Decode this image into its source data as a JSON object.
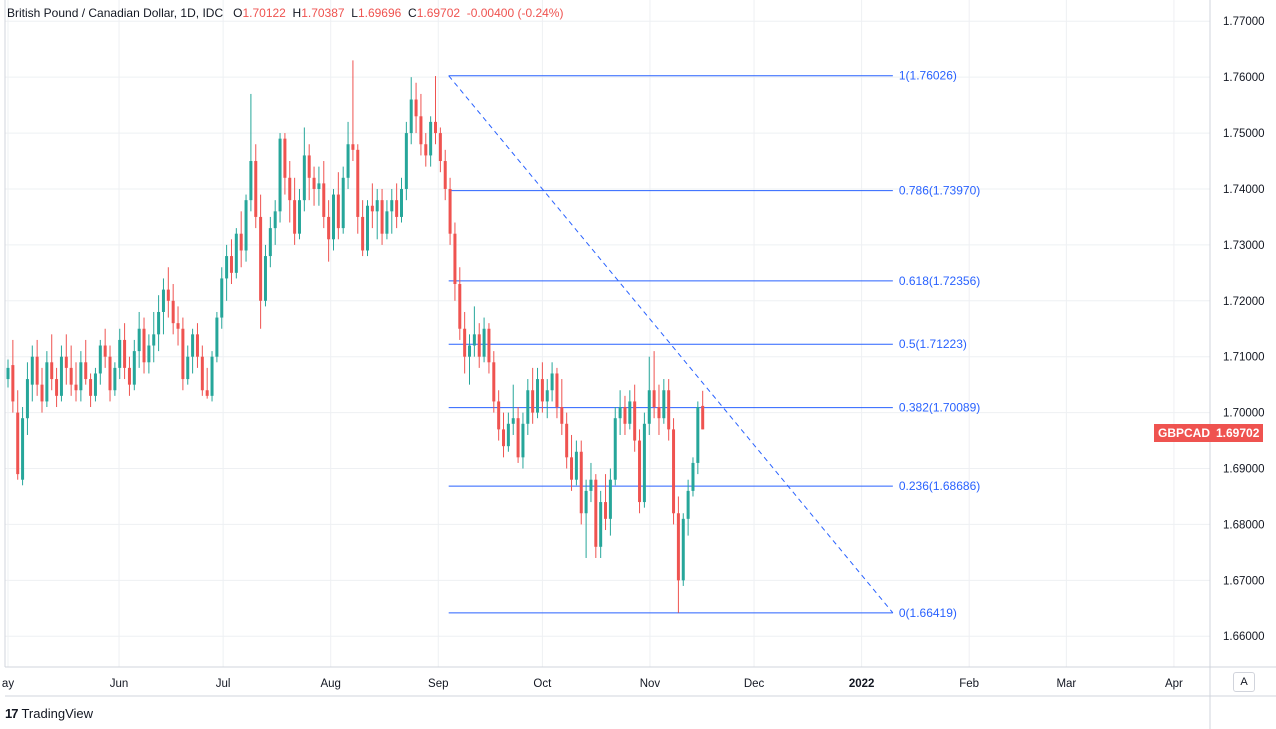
{
  "legend": {
    "symbol_desc": "British Pound / Canadian Dollar, 1D, IDC",
    "open_label": "O",
    "open": "1.70122",
    "high_label": "H",
    "high": "1.70387",
    "low_label": "L",
    "low": "1.69696",
    "close_label": "C",
    "close": "1.69702",
    "change": "-0.00400 (-0.24%)"
  },
  "price_badge": {
    "symbol": "GBPCAD",
    "price": "1.69702"
  },
  "auto_button": "A",
  "footer": {
    "brand": "TradingView",
    "logo": "17"
  },
  "colors": {
    "up": "#26a69a",
    "down": "#ef5350",
    "fib": "#2962ff",
    "grid": "#eef0f3"
  },
  "chart_data": {
    "type": "candlestick",
    "y_ticks": [
      "1.77000",
      "1.76000",
      "1.75000",
      "1.74000",
      "1.73000",
      "1.72000",
      "1.71000",
      "1.70000",
      "1.69000",
      "1.68000",
      "1.67000",
      "1.66000"
    ],
    "ylim": [
      1.6545,
      1.7738
    ],
    "x_labels": [
      {
        "label": "ay",
        "day": 0
      },
      {
        "label": "Jun",
        "day": 32
      },
      {
        "label": "Jul",
        "day": 62
      },
      {
        "label": "Aug",
        "day": 93
      },
      {
        "label": "Sep",
        "day": 124
      },
      {
        "label": "Oct",
        "day": 154
      },
      {
        "label": "Nov",
        "day": 185
      },
      {
        "label": "Dec",
        "day": 215
      },
      {
        "label": "2022",
        "day": 246
      },
      {
        "label": "Feb",
        "day": 277
      },
      {
        "label": "Mar",
        "day": 305
      },
      {
        "label": "Apr",
        "day": 336
      }
    ],
    "fibonacci": {
      "start_day": 127,
      "end_day": 255,
      "levels": [
        {
          "label": "1(1.76026)",
          "price": 1.76026
        },
        {
          "label": "0.786(1.73970)",
          "price": 1.7397
        },
        {
          "label": "0.618(1.72356)",
          "price": 1.72356
        },
        {
          "label": "0.5(1.71223)",
          "price": 1.71223
        },
        {
          "label": "0.382(1.70089)",
          "price": 1.70089
        },
        {
          "label": "0.236(1.68686)",
          "price": 1.68686
        },
        {
          "label": "0(1.66419)",
          "price": 1.66419
        }
      ],
      "trend_from": {
        "day": 127,
        "price": 1.76026
      },
      "trend_to": {
        "day": 255,
        "price": 1.66419
      }
    },
    "candles": [
      [
        1.706,
        1.7095,
        1.7045,
        1.708
      ],
      [
        1.7085,
        1.713,
        1.7,
        1.702
      ],
      [
        1.7,
        1.704,
        1.688,
        1.689
      ],
      [
        1.688,
        1.701,
        1.687,
        1.699
      ],
      [
        1.699,
        1.709,
        1.696,
        1.706
      ],
      [
        1.705,
        1.712,
        1.702,
        1.71
      ],
      [
        1.71,
        1.713,
        1.703,
        1.705
      ],
      [
        1.705,
        1.708,
        1.7,
        1.702
      ],
      [
        1.702,
        1.711,
        1.701,
        1.709
      ],
      [
        1.709,
        1.714,
        1.704,
        1.706
      ],
      [
        1.706,
        1.708,
        1.701,
        1.703
      ],
      [
        1.703,
        1.712,
        1.702,
        1.71
      ],
      [
        1.71,
        1.714,
        1.705,
        1.708
      ],
      [
        1.708,
        1.712,
        1.703,
        1.705
      ],
      [
        1.705,
        1.709,
        1.702,
        1.704
      ],
      [
        1.704,
        1.711,
        1.702,
        1.709
      ],
      [
        1.709,
        1.713,
        1.705,
        1.706
      ],
      [
        1.706,
        1.707,
        1.701,
        1.703
      ],
      [
        1.703,
        1.708,
        1.702,
        1.707
      ],
      [
        1.707,
        1.713,
        1.705,
        1.712
      ],
      [
        1.712,
        1.715,
        1.708,
        1.71
      ],
      [
        1.71,
        1.712,
        1.702,
        1.704
      ],
      [
        1.704,
        1.709,
        1.703,
        1.708
      ],
      [
        1.708,
        1.715,
        1.706,
        1.713
      ],
      [
        1.713,
        1.716,
        1.706,
        1.708
      ],
      [
        1.708,
        1.71,
        1.703,
        1.705
      ],
      [
        1.705,
        1.713,
        1.704,
        1.711
      ],
      [
        1.711,
        1.718,
        1.708,
        1.715
      ],
      [
        1.715,
        1.717,
        1.707,
        1.709
      ],
      [
        1.709,
        1.714,
        1.707,
        1.712
      ],
      [
        1.712,
        1.718,
        1.709,
        1.714
      ],
      [
        1.714,
        1.721,
        1.711,
        1.718
      ],
      [
        1.718,
        1.724,
        1.714,
        1.722
      ],
      [
        1.722,
        1.726,
        1.717,
        1.72
      ],
      [
        1.72,
        1.723,
        1.714,
        1.716
      ],
      [
        1.716,
        1.719,
        1.712,
        1.715
      ],
      [
        1.715,
        1.717,
        1.704,
        1.706
      ],
      [
        1.706,
        1.712,
        1.705,
        1.71
      ],
      [
        1.71,
        1.715,
        1.707,
        1.714
      ],
      [
        1.714,
        1.716,
        1.708,
        1.71
      ],
      [
        1.71,
        1.712,
        1.703,
        1.704
      ],
      [
        1.704,
        1.708,
        1.7025,
        1.703
      ],
      [
        1.703,
        1.711,
        1.702,
        1.71
      ],
      [
        1.71,
        1.718,
        1.709,
        1.717
      ],
      [
        1.717,
        1.726,
        1.715,
        1.724
      ],
      [
        1.724,
        1.73,
        1.72,
        1.728
      ],
      [
        1.728,
        1.731,
        1.723,
        1.725
      ],
      [
        1.725,
        1.733,
        1.724,
        1.732
      ],
      [
        1.732,
        1.736,
        1.726,
        1.729
      ],
      [
        1.729,
        1.739,
        1.727,
        1.738
      ],
      [
        1.738,
        1.757,
        1.736,
        1.745
      ],
      [
        1.745,
        1.748,
        1.733,
        1.735
      ],
      [
        1.735,
        1.739,
        1.715,
        1.72
      ],
      [
        1.72,
        1.73,
        1.719,
        1.728
      ],
      [
        1.728,
        1.735,
        1.726,
        1.733
      ],
      [
        1.733,
        1.738,
        1.73,
        1.736
      ],
      [
        1.736,
        1.75,
        1.734,
        1.749
      ],
      [
        1.749,
        1.75,
        1.739,
        1.742
      ],
      [
        1.742,
        1.745,
        1.734,
        1.738
      ],
      [
        1.738,
        1.742,
        1.73,
        1.732
      ],
      [
        1.732,
        1.74,
        1.731,
        1.738
      ],
      [
        1.738,
        1.751,
        1.736,
        1.746
      ],
      [
        1.746,
        1.748,
        1.738,
        1.742
      ],
      [
        1.742,
        1.744,
        1.737,
        1.74
      ],
      [
        1.74,
        1.744,
        1.737,
        1.741
      ],
      [
        1.741,
        1.745,
        1.733,
        1.735
      ],
      [
        1.735,
        1.738,
        1.727,
        1.731
      ],
      [
        1.731,
        1.74,
        1.729,
        1.739
      ],
      [
        1.739,
        1.743,
        1.731,
        1.733
      ],
      [
        1.733,
        1.744,
        1.732,
        1.742
      ],
      [
        1.742,
        1.752,
        1.74,
        1.748
      ],
      [
        1.748,
        1.763,
        1.745,
        1.747
      ],
      [
        1.747,
        1.748,
        1.732,
        1.735
      ],
      [
        1.735,
        1.738,
        1.728,
        1.729
      ],
      [
        1.729,
        1.738,
        1.728,
        1.737
      ],
      [
        1.737,
        1.741,
        1.733,
        1.736
      ],
      [
        1.736,
        1.74,
        1.731,
        1.738
      ],
      [
        1.738,
        1.74,
        1.73,
        1.732
      ],
      [
        1.732,
        1.738,
        1.731,
        1.736
      ],
      [
        1.736,
        1.74,
        1.732,
        1.738
      ],
      [
        1.738,
        1.741,
        1.733,
        1.735
      ],
      [
        1.735,
        1.742,
        1.734,
        1.74
      ],
      [
        1.74,
        1.752,
        1.738,
        1.75
      ],
      [
        1.75,
        1.76,
        1.748,
        1.756
      ],
      [
        1.756,
        1.759,
        1.75,
        1.753
      ],
      [
        1.753,
        1.757,
        1.746,
        1.748
      ],
      [
        1.748,
        1.75,
        1.744,
        1.746
      ],
      [
        1.746,
        1.753,
        1.744,
        1.752
      ],
      [
        1.752,
        1.7602,
        1.748,
        1.75
      ],
      [
        1.75,
        1.751,
        1.743,
        1.745
      ],
      [
        1.745,
        1.747,
        1.738,
        1.74
      ],
      [
        1.74,
        1.742,
        1.73,
        1.732
      ],
      [
        1.732,
        1.734,
        1.72,
        1.723
      ],
      [
        1.723,
        1.726,
        1.713,
        1.715
      ],
      [
        1.715,
        1.718,
        1.707,
        1.71
      ],
      [
        1.71,
        1.714,
        1.705,
        1.712
      ],
      [
        1.712,
        1.719,
        1.71,
        1.714
      ],
      [
        1.714,
        1.716,
        1.708,
        1.71
      ],
      [
        1.71,
        1.717,
        1.709,
        1.715
      ],
      [
        1.715,
        1.716,
        1.707,
        1.709
      ],
      [
        1.709,
        1.711,
        1.7,
        1.702
      ],
      [
        1.702,
        1.704,
        1.695,
        1.697
      ],
      [
        1.697,
        1.7,
        1.692,
        1.694
      ],
      [
        1.694,
        1.7,
        1.693,
        1.698
      ],
      [
        1.698,
        1.705,
        1.696,
        1.699
      ],
      [
        1.699,
        1.701,
        1.691,
        1.692
      ],
      [
        1.692,
        1.7,
        1.69,
        1.698
      ],
      [
        1.698,
        1.706,
        1.696,
        1.704
      ],
      [
        1.704,
        1.708,
        1.698,
        1.7
      ],
      [
        1.7,
        1.708,
        1.699,
        1.706
      ],
      [
        1.706,
        1.709,
        1.7,
        1.702
      ],
      [
        1.702,
        1.706,
        1.699,
        1.704
      ],
      [
        1.704,
        1.709,
        1.702,
        1.707
      ],
      [
        1.707,
        1.708,
        1.699,
        1.701
      ],
      [
        1.701,
        1.706,
        1.696,
        1.698
      ],
      [
        1.698,
        1.7,
        1.69,
        1.692
      ],
      [
        1.692,
        1.696,
        1.686,
        1.688
      ],
      [
        1.688,
        1.695,
        1.687,
        1.693
      ],
      [
        1.693,
        1.695,
        1.68,
        1.682
      ],
      [
        1.682,
        1.688,
        1.674,
        1.686
      ],
      [
        1.686,
        1.691,
        1.684,
        1.688
      ],
      [
        1.688,
        1.689,
        1.674,
        1.676
      ],
      [
        1.676,
        1.686,
        1.674,
        1.684
      ],
      [
        1.684,
        1.689,
        1.679,
        1.681
      ],
      [
        1.681,
        1.69,
        1.678,
        1.688
      ],
      [
        1.688,
        1.701,
        1.687,
        1.699
      ],
      [
        1.699,
        1.704,
        1.696,
        1.701
      ],
      [
        1.701,
        1.703,
        1.696,
        1.698
      ],
      [
        1.698,
        1.704,
        1.697,
        1.702
      ],
      [
        1.702,
        1.705,
        1.693,
        1.695
      ],
      [
        1.695,
        1.697,
        1.682,
        1.684
      ],
      [
        1.684,
        1.7,
        1.683,
        1.698
      ],
      [
        1.698,
        1.71,
        1.696,
        1.704
      ],
      [
        1.704,
        1.711,
        1.699,
        1.701
      ],
      [
        1.701,
        1.705,
        1.696,
        1.699
      ],
      [
        1.699,
        1.706,
        1.698,
        1.704
      ],
      [
        1.704,
        1.706,
        1.695,
        1.697
      ],
      [
        1.697,
        1.699,
        1.68,
        1.682
      ],
      [
        1.682,
        1.685,
        1.6642,
        1.67
      ],
      [
        1.67,
        1.682,
        1.669,
        1.681
      ],
      [
        1.681,
        1.688,
        1.678,
        1.686
      ],
      [
        1.686,
        1.692,
        1.685,
        1.691
      ],
      [
        1.691,
        1.702,
        1.689,
        1.701
      ],
      [
        1.7012,
        1.7039,
        1.697,
        1.697
      ]
    ]
  }
}
